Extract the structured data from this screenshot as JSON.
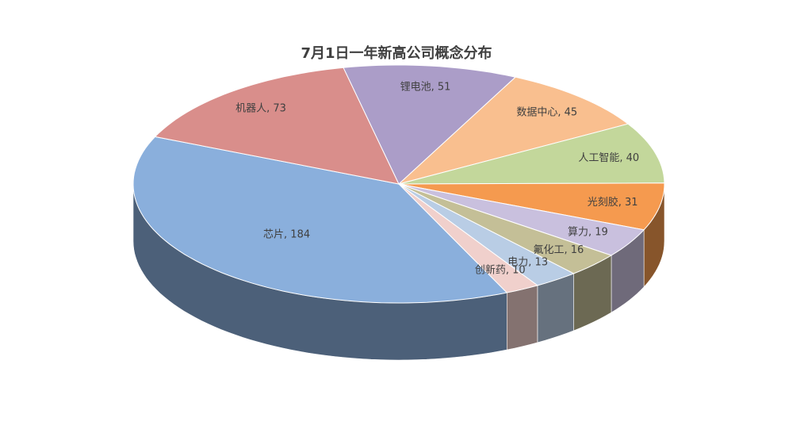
{
  "chart_data": {
    "type": "pie",
    "title": "7月1日一年新高公司概念分布",
    "categories": [
      "芯片",
      "机器人",
      "锂电池",
      "数据中心",
      "人工智能",
      "光刻胶",
      "算力",
      "氟化工",
      "电力",
      "创新药"
    ],
    "values": [
      184,
      73,
      51,
      45,
      40,
      31,
      19,
      16,
      13,
      10
    ],
    "value_labels": [
      "芯片, 184",
      "机器人, 73",
      "锂电池, 51",
      "数据中心, 45",
      "人工智能, 40",
      "光刻胶, 31",
      "算力, 19",
      "氟化工, 16",
      "电力, 13",
      "创新药, 10"
    ],
    "colors": [
      "#8aafdc",
      "#d98e8b",
      "#ab9dc8",
      "#f9bf8f",
      "#c3d79b",
      "#f59a4f",
      "#c9c0de",
      "#c4bf97",
      "#b9cde5",
      "#f0d0cc"
    ]
  }
}
